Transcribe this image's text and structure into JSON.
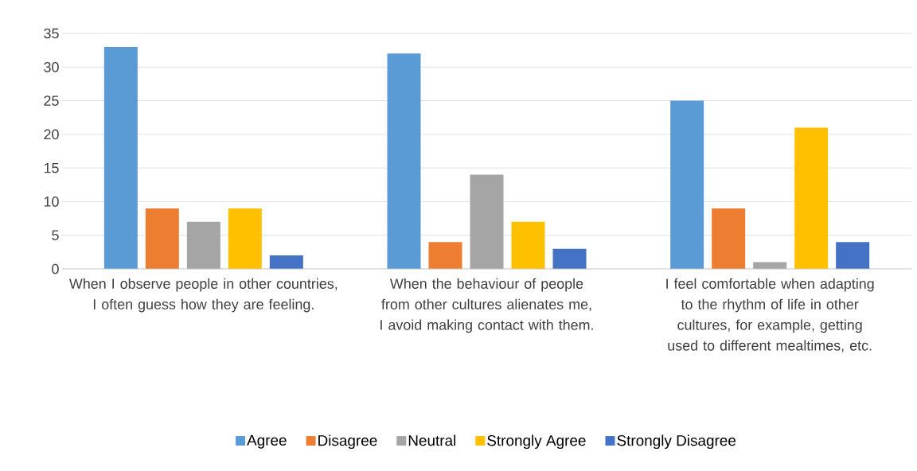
{
  "chart_data": {
    "type": "bar",
    "categories": [
      "When I observe people in other countries, I often guess how they are feeling.",
      "When the behaviour of people from other cultures alienates me, I avoid making contact with them.",
      "I feel comfortable when adapting to the rhythm of life in other cultures, for example, getting used to different mealtimes, etc."
    ],
    "series": [
      {
        "name": "Agree",
        "color": "#5b9bd5",
        "values": [
          33,
          32,
          25
        ]
      },
      {
        "name": "Disagree",
        "color": "#ed7d31",
        "values": [
          9,
          4,
          9
        ]
      },
      {
        "name": "Neutral",
        "color": "#a5a5a5",
        "values": [
          7,
          14,
          1
        ]
      },
      {
        "name": "Strongly Agree",
        "color": "#ffc000",
        "values": [
          9,
          7,
          21
        ]
      },
      {
        "name": "Strongly Disagree",
        "color": "#4472c4",
        "values": [
          2,
          3,
          4
        ]
      }
    ],
    "ylim": [
      0,
      35
    ],
    "yticks": [
      0,
      5,
      10,
      15,
      20,
      25,
      30,
      35
    ],
    "grid": "y",
    "legend": "bottom"
  }
}
